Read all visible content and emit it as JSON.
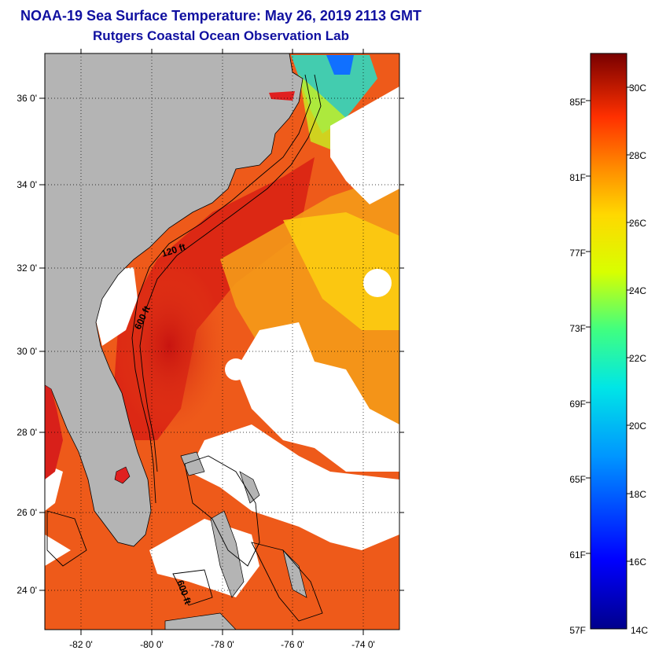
{
  "header": {
    "title": "NOAA-19 Sea Surface Temperature:  May 26, 2019 2113 GMT",
    "subtitle": "Rutgers Coastal Ocean Observation Lab"
  },
  "map": {
    "lat_labels": [
      "36 0'",
      "34 0'",
      "32 0'",
      "30 0'",
      "28 0'",
      "26 0'",
      "24 0'"
    ],
    "lon_labels": [
      "-82 0'",
      "-80 0'",
      "-78 0'",
      "-76 0'",
      "-74 0'"
    ],
    "isobath_labels": [
      "120 ft",
      "600 ft",
      "600 ft"
    ],
    "colors": {
      "land": "#b4b4b4",
      "cloud": "#ffffff",
      "warm": "#e8401a",
      "hot": "#d01810"
    }
  },
  "colorbar": {
    "fahrenheit_labels": [
      "85F",
      "81F",
      "77F",
      "73F",
      "69F",
      "65F",
      "61F",
      "57F"
    ],
    "celsius_labels": [
      "30C",
      "28C",
      "26C",
      "24C",
      "22C",
      "20C",
      "18C",
      "16C",
      "14C"
    ]
  }
}
